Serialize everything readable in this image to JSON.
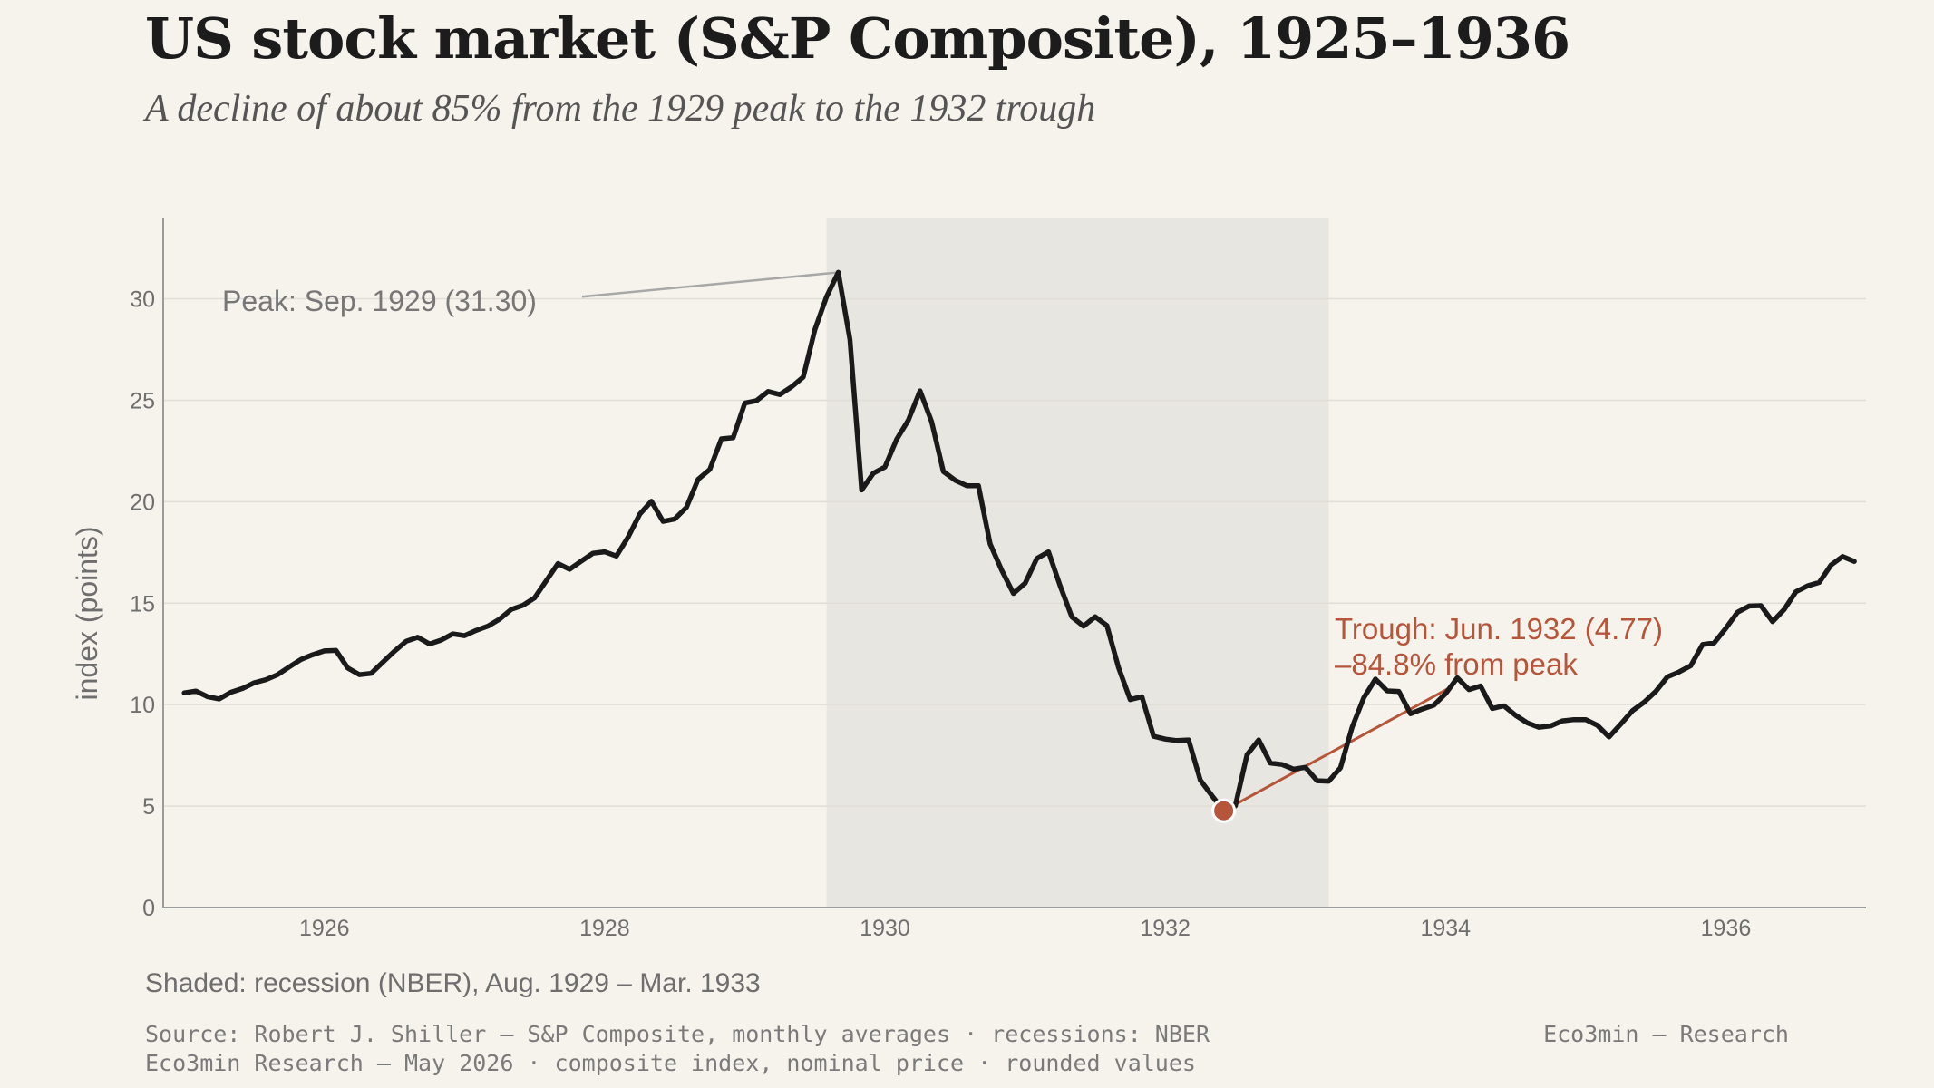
{
  "header": {
    "title": "US stock market (S&P Composite), 1925–1936",
    "subtitle": "A decline of about 85% from the 1929 peak to the 1932 trough"
  },
  "footer": {
    "note": "Shaded: recession (NBER), Aug. 1929 – Mar. 1933",
    "source_line1": "Source: Robert J. Shiller — S&P Composite, monthly averages · recessions: NBER",
    "source_line2": "Eco3min Research — May 2026 · composite index, nominal price · rounded values",
    "brand": "Eco3min — Research"
  },
  "colors": {
    "background": "#f6f3ed",
    "line": "#1a1a1a",
    "recession_shade": "#e8e6e1",
    "accent": "#b5553a",
    "peak_annotation": "#777777",
    "grid": "#e0ddd6"
  },
  "chart_data": {
    "type": "line",
    "ylabel": "index (points)",
    "xlabel": "",
    "ylim": [
      0,
      34
    ],
    "xlim": [
      1924.85,
      1937.0
    ],
    "y_ticks": [
      0,
      5,
      10,
      15,
      20,
      25,
      30
    ],
    "x_ticks": [
      1926,
      1928,
      1930,
      1932,
      1934,
      1936
    ],
    "grid": "horizontal",
    "recession": {
      "start": "1929-08",
      "end": "1933-03",
      "start_x": 1929.583,
      "end_x": 1933.167
    },
    "annotations": [
      {
        "id": "peak",
        "text": "Peak: Sep. 1929 (31.30)",
        "x": 1929.667,
        "y": 31.3
      },
      {
        "id": "trough",
        "lines": [
          "Trough: Jun. 1932 (4.77)",
          "–84.8% from peak"
        ],
        "x": 1932.417,
        "y": 4.77
      }
    ],
    "series": [
      {
        "x_start": 1925.0,
        "step": 0.08333333,
        "values": [
          10.58,
          10.67,
          10.39,
          10.28,
          10.61,
          10.8,
          11.08,
          11.23,
          11.48,
          11.86,
          12.23,
          12.46,
          12.65,
          12.67,
          11.81,
          11.48,
          11.54,
          12.09,
          12.63,
          13.12,
          13.32,
          12.99,
          13.18,
          13.49,
          13.4,
          13.66,
          13.87,
          14.21,
          14.69,
          14.89,
          15.26,
          16.11,
          16.95,
          16.67,
          17.07,
          17.46,
          17.53,
          17.32,
          18.25,
          19.38,
          20.02,
          19.03,
          19.15,
          19.72,
          21.1,
          21.59,
          23.1,
          23.15,
          24.86,
          24.98,
          25.43,
          25.28,
          25.66,
          26.14,
          28.48,
          30.1,
          31.3,
          27.99,
          20.58,
          21.4,
          21.71,
          23.07,
          24.02,
          25.46,
          23.94,
          21.49,
          21.06,
          20.79,
          20.79,
          17.92,
          16.62,
          15.48,
          15.98,
          17.2,
          17.53,
          15.86,
          14.33,
          13.87,
          14.33,
          13.9,
          11.83,
          10.25,
          10.39,
          8.44,
          8.3,
          8.23,
          8.26,
          6.28,
          5.51,
          4.77,
          5.01,
          7.53,
          8.26,
          7.12,
          7.05,
          6.82,
          6.91,
          6.25,
          6.23,
          6.89,
          8.89,
          10.34,
          11.26,
          10.68,
          10.65,
          9.55,
          9.78,
          9.97,
          10.54,
          11.32,
          10.74,
          10.92,
          9.81,
          9.94,
          9.47,
          9.1,
          8.88,
          8.95,
          9.2,
          9.26,
          9.26,
          8.98,
          8.41,
          9.04,
          9.7,
          10.12,
          10.65,
          11.37,
          11.61,
          11.92,
          12.96,
          13.04,
          13.76,
          14.55,
          14.86,
          14.88,
          14.09,
          14.69,
          15.56,
          15.85,
          16.02,
          16.88,
          17.3,
          17.06
        ]
      }
    ]
  }
}
